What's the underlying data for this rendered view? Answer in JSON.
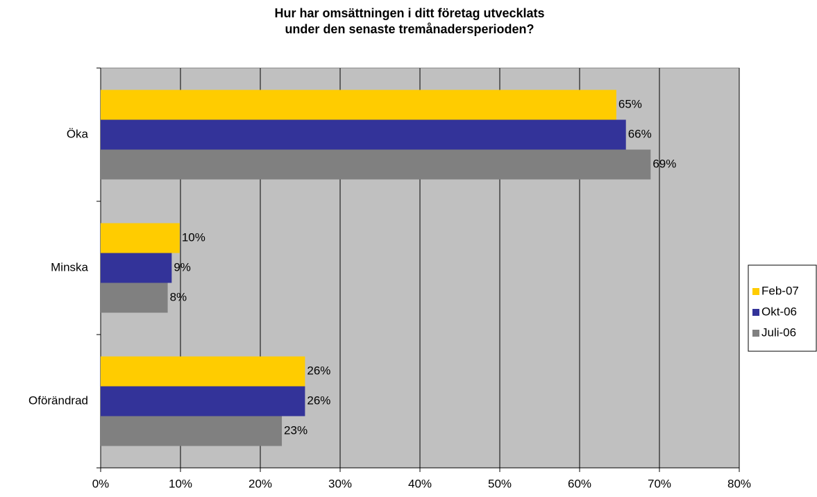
{
  "chart_data": {
    "type": "barh",
    "title": [
      "Hur har omsättningen i ditt företag utvecklats",
      "under den senaste tremånadersperioden?"
    ],
    "categories": [
      "Öka",
      "Minska",
      "Oförändrad"
    ],
    "series": [
      {
        "name": "Feb-07",
        "color": "#ffcc00",
        "values": [
          64.6,
          9.9,
          25.6
        ],
        "value_labels": [
          "65%",
          "10%",
          "26%"
        ]
      },
      {
        "name": "Okt-06",
        "color": "#333399",
        "values": [
          65.8,
          8.9,
          25.6
        ],
        "value_labels": [
          "66%",
          "9%",
          "26%"
        ]
      },
      {
        "name": "Juli-06",
        "color": "#808080",
        "values": [
          68.9,
          8.4,
          22.7
        ],
        "value_labels": [
          "69%",
          "8%",
          "23%"
        ]
      }
    ],
    "xlim": [
      0,
      80
    ],
    "xticks": [
      {
        "value": 0,
        "label": "0%"
      },
      {
        "value": 10,
        "label": "10%"
      },
      {
        "value": 20,
        "label": "20%"
      },
      {
        "value": 30,
        "label": "30%"
      },
      {
        "value": 40,
        "label": "40%"
      },
      {
        "value": 50,
        "label": "50%"
      },
      {
        "value": 60,
        "label": "60%"
      },
      {
        "value": 70,
        "label": "70%"
      },
      {
        "value": 80,
        "label": "80%"
      }
    ],
    "grid": true,
    "plot_background": "#c0c0c0",
    "legend": "right"
  }
}
